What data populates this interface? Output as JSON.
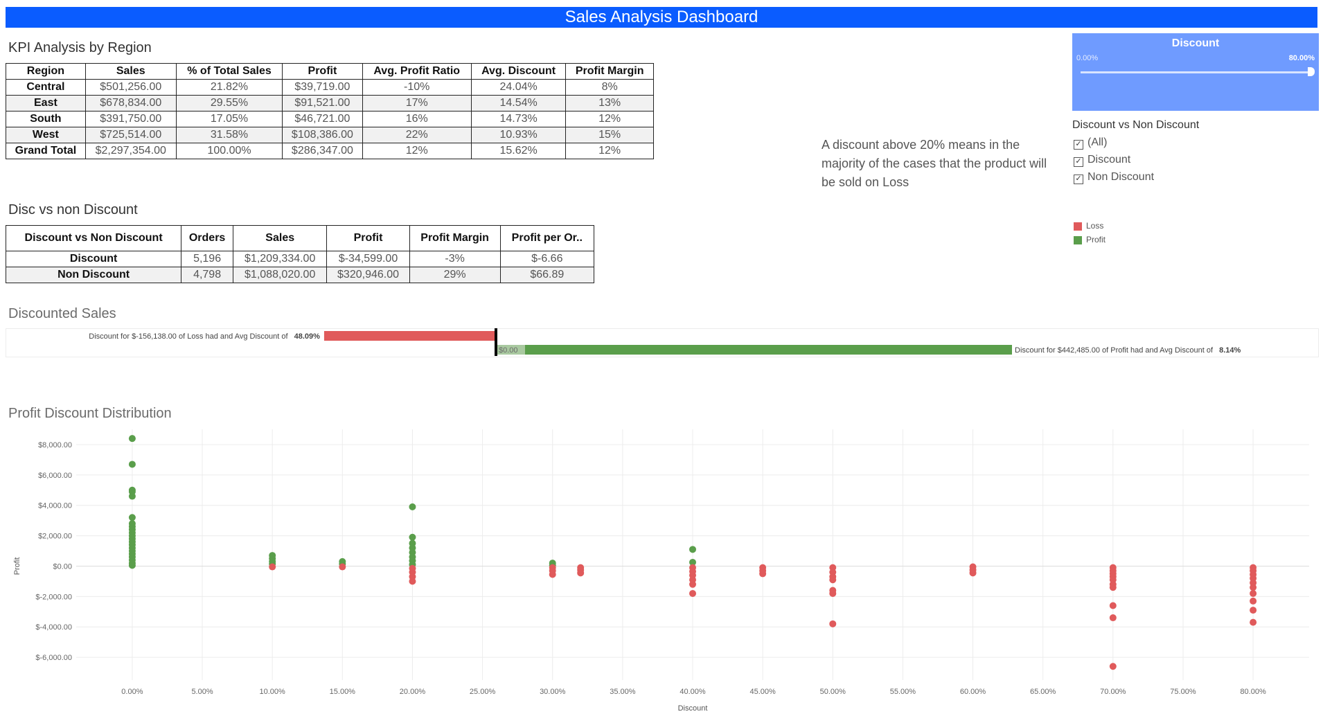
{
  "header": {
    "title": "Sales Analysis Dashboard"
  },
  "colors": {
    "title_bar": "#0a5cff",
    "filter_bg": "#6f9bff",
    "loss": "#e05a5b",
    "profit": "#5a9e4b"
  },
  "kpi": {
    "title": "KPI Analysis by Region",
    "columns": [
      "Region",
      "Sales",
      "% of Total Sales",
      "Profit",
      "Avg. Profit Ratio",
      "Avg. Discount",
      "Profit Margin"
    ],
    "rows": [
      [
        "Central",
        "$501,256.00",
        "21.82%",
        "$39,719.00",
        "-10%",
        "24.04%",
        "8%"
      ],
      [
        "East",
        "$678,834.00",
        "29.55%",
        "$91,521.00",
        "17%",
        "14.54%",
        "13%"
      ],
      [
        "South",
        "$391,750.00",
        "17.05%",
        "$46,721.00",
        "16%",
        "14.73%",
        "12%"
      ],
      [
        "West",
        "$725,514.00",
        "31.58%",
        "$108,386.00",
        "22%",
        "10.93%",
        "15%"
      ],
      [
        "Grand Total",
        "$2,297,354.00",
        "100.00%",
        "$286,347.00",
        "12%",
        "15.62%",
        "12%"
      ]
    ]
  },
  "disc_table": {
    "title": "Disc vs non Discount",
    "columns": [
      "Discount vs Non Discount",
      "Orders",
      "Sales",
      "Profit",
      "Profit Margin",
      "Profit per Or.."
    ],
    "rows": [
      [
        "Discount",
        "5,196",
        "$1,209,334.00",
        "$-34,599.00",
        "-3%",
        "$-6.66"
      ],
      [
        "Non Discount",
        "4,798",
        "$1,088,020.00",
        "$320,946.00",
        "29%",
        "$66.89"
      ]
    ]
  },
  "discount_filter": {
    "label": "Discount",
    "min": "0.00%",
    "max": "80.00%",
    "value_fraction": 1.0
  },
  "note": "A discount above 20% means in the majority of the cases that the product will be sold on Loss",
  "dvn_filter": {
    "title": "Discount vs Non Discount",
    "options": [
      {
        "label": "(All)",
        "checked": true
      },
      {
        "label": "Discount",
        "checked": true
      },
      {
        "label": "Non Discount",
        "checked": true
      }
    ]
  },
  "legend": [
    {
      "label": "Loss",
      "color": "#e05a5b"
    },
    {
      "label": "Profit",
      "color": "#5a9e4b"
    }
  ],
  "discounted_sales": {
    "title": "Discounted Sales",
    "zero_label": "$0.00",
    "loss": {
      "prefix": "Discount for",
      "amount": "$-156,138.00",
      "mid": "of Loss had and Avg Discount of",
      "avg": "48.09%",
      "value": -156138
    },
    "profit": {
      "prefix": "Discount for",
      "amount": "$442,485.00",
      "mid": "of Profit had and Avg Discount of",
      "avg": "8.14%",
      "value": 442485
    }
  },
  "chart_data": {
    "type": "scatter",
    "title": "Profit Discount Distribution",
    "xlabel": "Discount",
    "ylabel": "Profit",
    "xlim": [
      -0.04,
      0.84
    ],
    "ylim": [
      -7500,
      9000
    ],
    "x_ticks": [
      "0.00%",
      "5.00%",
      "10.00%",
      "15.00%",
      "20.00%",
      "25.00%",
      "30.00%",
      "35.00%",
      "40.00%",
      "45.00%",
      "50.00%",
      "55.00%",
      "60.00%",
      "65.00%",
      "70.00%",
      "75.00%",
      "80.00%"
    ],
    "x_tick_values": [
      0,
      0.05,
      0.1,
      0.15,
      0.2,
      0.25,
      0.3,
      0.35,
      0.4,
      0.45,
      0.5,
      0.55,
      0.6,
      0.65,
      0.7,
      0.75,
      0.8
    ],
    "y_ticks": [
      "$8,000.00",
      "$6,000.00",
      "$4,000.00",
      "$2,000.00",
      "$0.00",
      "$-2,000.00",
      "$-4,000.00",
      "$-6,000.00"
    ],
    "y_tick_values": [
      8000,
      6000,
      4000,
      2000,
      0,
      -2000,
      -4000,
      -6000
    ],
    "grid": true,
    "series": [
      {
        "name": "Profit",
        "color": "#5a9e4b",
        "points": [
          [
            0,
            8400
          ],
          [
            0,
            6700
          ],
          [
            0,
            5000
          ],
          [
            0,
            4900
          ],
          [
            0,
            4600
          ],
          [
            0,
            3200
          ],
          [
            0,
            2800
          ],
          [
            0,
            2600
          ],
          [
            0,
            2400
          ],
          [
            0,
            2200
          ],
          [
            0,
            2000
          ],
          [
            0,
            1800
          ],
          [
            0,
            1600
          ],
          [
            0,
            1400
          ],
          [
            0,
            1200
          ],
          [
            0,
            1000
          ],
          [
            0,
            800
          ],
          [
            0,
            600
          ],
          [
            0,
            400
          ],
          [
            0,
            200
          ],
          [
            0,
            50
          ],
          [
            0.1,
            700
          ],
          [
            0.1,
            500
          ],
          [
            0.1,
            300
          ],
          [
            0.1,
            150
          ],
          [
            0.15,
            300
          ],
          [
            0.15,
            150
          ],
          [
            0.2,
            3900
          ],
          [
            0.2,
            1900
          ],
          [
            0.2,
            1500
          ],
          [
            0.2,
            1200
          ],
          [
            0.2,
            900
          ],
          [
            0.2,
            600
          ],
          [
            0.2,
            350
          ],
          [
            0.2,
            100
          ],
          [
            0.3,
            200
          ],
          [
            0.3,
            50
          ],
          [
            0.4,
            1100
          ],
          [
            0.4,
            250
          ]
        ]
      },
      {
        "name": "Loss",
        "color": "#e05a5b",
        "points": [
          [
            0.1,
            -50
          ],
          [
            0.15,
            -50
          ],
          [
            0.2,
            -150
          ],
          [
            0.2,
            -400
          ],
          [
            0.2,
            -700
          ],
          [
            0.2,
            -1000
          ],
          [
            0.3,
            -100
          ],
          [
            0.3,
            -300
          ],
          [
            0.3,
            -550
          ],
          [
            0.32,
            -100
          ],
          [
            0.32,
            -250
          ],
          [
            0.32,
            -450
          ],
          [
            0.4,
            -100
          ],
          [
            0.4,
            -350
          ],
          [
            0.4,
            -600
          ],
          [
            0.4,
            -900
          ],
          [
            0.4,
            -1200
          ],
          [
            0.4,
            -1800
          ],
          [
            0.45,
            -100
          ],
          [
            0.45,
            -300
          ],
          [
            0.45,
            -500
          ],
          [
            0.5,
            -100
          ],
          [
            0.5,
            -400
          ],
          [
            0.5,
            -700
          ],
          [
            0.5,
            -900
          ],
          [
            0.5,
            -1600
          ],
          [
            0.5,
            -1800
          ],
          [
            0.5,
            -3800
          ],
          [
            0.6,
            -50
          ],
          [
            0.6,
            -250
          ],
          [
            0.6,
            -450
          ],
          [
            0.7,
            -100
          ],
          [
            0.7,
            -300
          ],
          [
            0.7,
            -500
          ],
          [
            0.7,
            -700
          ],
          [
            0.7,
            -900
          ],
          [
            0.7,
            -1200
          ],
          [
            0.7,
            -1400
          ],
          [
            0.7,
            -2600
          ],
          [
            0.7,
            -3400
          ],
          [
            0.7,
            -6600
          ],
          [
            0.8,
            -100
          ],
          [
            0.8,
            -300
          ],
          [
            0.8,
            -550
          ],
          [
            0.8,
            -800
          ],
          [
            0.8,
            -1100
          ],
          [
            0.8,
            -1400
          ],
          [
            0.8,
            -1800
          ],
          [
            0.8,
            -2300
          ],
          [
            0.8,
            -2900
          ],
          [
            0.8,
            -3700
          ]
        ]
      }
    ]
  }
}
